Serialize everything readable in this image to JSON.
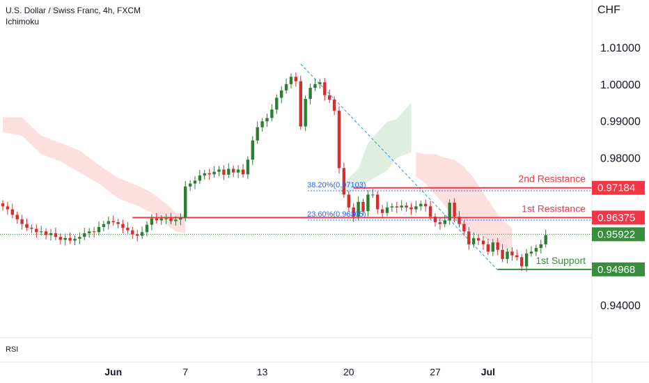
{
  "header": {
    "title": "U.S. Dollar / Swiss Franc, 4h, FXCM",
    "indicator": "Ichimoku"
  },
  "sub_pane_label": "RSI",
  "currency": "CHF",
  "colors": {
    "up": "#26a69a",
    "down": "#ef5350",
    "bull_candle": "#2e7d32",
    "bear_candle": "#d32f2f",
    "resistance": "#f23645",
    "support": "#388e3c",
    "fib": "#2962ff",
    "trendline": "#2196f3",
    "cloud_bear": "#fbd9d9",
    "cloud_bull": "#d8ecdc",
    "axis_text": "#131722",
    "grid": "#e0e3eb"
  },
  "chart_data": {
    "type": "candlestick",
    "symbol": "USDCHF",
    "interval": "4h",
    "y_axis": {
      "min": 0.935,
      "max": 1.016,
      "ticks": [
        {
          "value": 1.01,
          "label": "1.01000"
        },
        {
          "value": 1.0,
          "label": "1.00000"
        },
        {
          "value": 0.99,
          "label": "0.99000"
        },
        {
          "value": 0.98,
          "label": "0.98000"
        },
        {
          "value": 0.94,
          "label": "0.94000"
        }
      ]
    },
    "x_axis": {
      "ticks": [
        {
          "bar": 23,
          "label": "Jun",
          "bold": true
        },
        {
          "bar": 38,
          "label": "7"
        },
        {
          "bar": 54,
          "label": "13"
        },
        {
          "bar": 72,
          "label": "20"
        },
        {
          "bar": 90,
          "label": "27"
        },
        {
          "bar": 101,
          "label": "Jul",
          "bold": true
        }
      ]
    },
    "close_series": [
      0.9668,
      0.966,
      0.9645,
      0.9633,
      0.962,
      0.961,
      0.9607,
      0.9598,
      0.96,
      0.959,
      0.9595,
      0.9585,
      0.9577,
      0.9582,
      0.9575,
      0.958,
      0.9585,
      0.9595,
      0.96,
      0.9598,
      0.9612,
      0.962,
      0.9628,
      0.9625,
      0.962,
      0.961,
      0.9603,
      0.9592,
      0.9588,
      0.9598,
      0.9618,
      0.9635,
      0.963,
      0.9635,
      0.9635,
      0.9628,
      0.9632,
      0.9637,
      0.9722,
      0.973,
      0.9738,
      0.9752,
      0.9758,
      0.9755,
      0.9762,
      0.9768,
      0.9754,
      0.977,
      0.976,
      0.9768,
      0.9755,
      0.9795,
      0.9847,
      0.9883,
      0.9899,
      0.9908,
      0.9931,
      0.9963,
      0.9983,
      1.0,
      1.002,
      1.0008,
      0.9885,
      0.996,
      0.999,
      1.0,
      1.0005,
      0.997,
      0.9958,
      0.9928,
      0.9772,
      0.97,
      0.9665,
      0.964,
      0.968,
      0.9655,
      0.97,
      0.97,
      0.966,
      0.965,
      0.9665,
      0.9668,
      0.9665,
      0.967,
      0.9665,
      0.966,
      0.9668,
      0.9675,
      0.9668,
      0.964,
      0.9625,
      0.962,
      0.963,
      0.9678,
      0.964,
      0.962,
      0.96,
      0.9565,
      0.9582,
      0.9575,
      0.9565,
      0.9545,
      0.957,
      0.955,
      0.9525,
      0.9545,
      0.9535,
      0.953,
      0.9505,
      0.954,
      0.9545,
      0.9555,
      0.9565,
      0.959
    ],
    "last_price": 0.95922,
    "ichimoku_cloud": [
      {
        "type": "bearish",
        "upper": [
          [
            0,
            0.991
          ],
          [
            4,
            0.991
          ],
          [
            8,
            0.986
          ],
          [
            12,
            0.984
          ],
          [
            16,
            0.982
          ],
          [
            20,
            0.978
          ],
          [
            24,
            0.9745
          ],
          [
            28,
            0.9725
          ],
          [
            31,
            0.9705
          ],
          [
            34,
            0.9675
          ],
          [
            36,
            0.965
          ],
          [
            38,
            0.9645
          ]
        ],
        "lower": [
          [
            0,
            0.9915
          ],
          [
            4,
            0.9905
          ],
          [
            8,
            0.9855
          ],
          [
            12,
            0.9835
          ],
          [
            16,
            0.9805
          ],
          [
            20,
            0.9775
          ],
          [
            24,
            0.9735
          ],
          [
            28,
            0.9715
          ],
          [
            31,
            0.9695
          ],
          [
            34,
            0.9665
          ],
          [
            36,
            0.9645
          ],
          [
            38,
            0.964
          ]
        ]
      },
      {
        "type": "bullish",
        "upper": [
          [
            70,
            0.9715
          ],
          [
            72,
            0.9745
          ],
          [
            74,
            0.977
          ],
          [
            76,
            0.984
          ],
          [
            78,
            0.987
          ],
          [
            80,
            0.9898
          ],
          [
            82,
            0.9905
          ],
          [
            84,
            0.9935
          ],
          [
            85,
            0.995
          ]
        ],
        "lower": [
          [
            70,
            0.97
          ],
          [
            72,
            0.9705
          ],
          [
            74,
            0.9715
          ],
          [
            76,
            0.9735
          ],
          [
            78,
            0.975
          ],
          [
            80,
            0.9765
          ],
          [
            82,
            0.98
          ],
          [
            84,
            0.981
          ],
          [
            85,
            0.9815
          ]
        ]
      },
      {
        "type": "bearish",
        "upper": [
          [
            86,
            0.9815
          ],
          [
            88,
            0.981
          ],
          [
            90,
            0.981
          ],
          [
            92,
            0.98
          ],
          [
            94,
            0.9795
          ],
          [
            96,
            0.9775
          ],
          [
            98,
            0.9745
          ],
          [
            100,
            0.9705
          ],
          [
            102,
            0.9665
          ],
          [
            104,
            0.963
          ],
          [
            106,
            0.961
          ]
        ],
        "lower": [
          [
            86,
            0.9795
          ],
          [
            88,
            0.9775
          ],
          [
            90,
            0.9745
          ],
          [
            92,
            0.9715
          ],
          [
            94,
            0.9675
          ],
          [
            96,
            0.9655
          ],
          [
            98,
            0.964
          ],
          [
            100,
            0.963
          ],
          [
            102,
            0.9615
          ],
          [
            104,
            0.96
          ],
          [
            106,
            0.9582
          ]
        ]
      }
    ],
    "levels": [
      {
        "key": "r2",
        "name": "2nd Resistance",
        "value": 0.97184,
        "price_label": "0.97184",
        "from_bar": 73
      },
      {
        "key": "r1",
        "name": "1st Resistance",
        "value": 0.96375,
        "price_label": "0.96375",
        "from_bar": 27
      },
      {
        "key": "s1",
        "name": "1st Support",
        "value": 0.94968,
        "price_label": "0.94968",
        "from_bar": 103
      }
    ],
    "fib_levels": [
      {
        "label": "38.20%(0.97103)",
        "value": 0.97103
      },
      {
        "label": "23.60%(0.96305)",
        "value": 0.96305
      }
    ],
    "trendline": {
      "from_bar": 62,
      "from_value": 1.0055,
      "to_bar": 103,
      "to_value": 0.9495
    }
  }
}
